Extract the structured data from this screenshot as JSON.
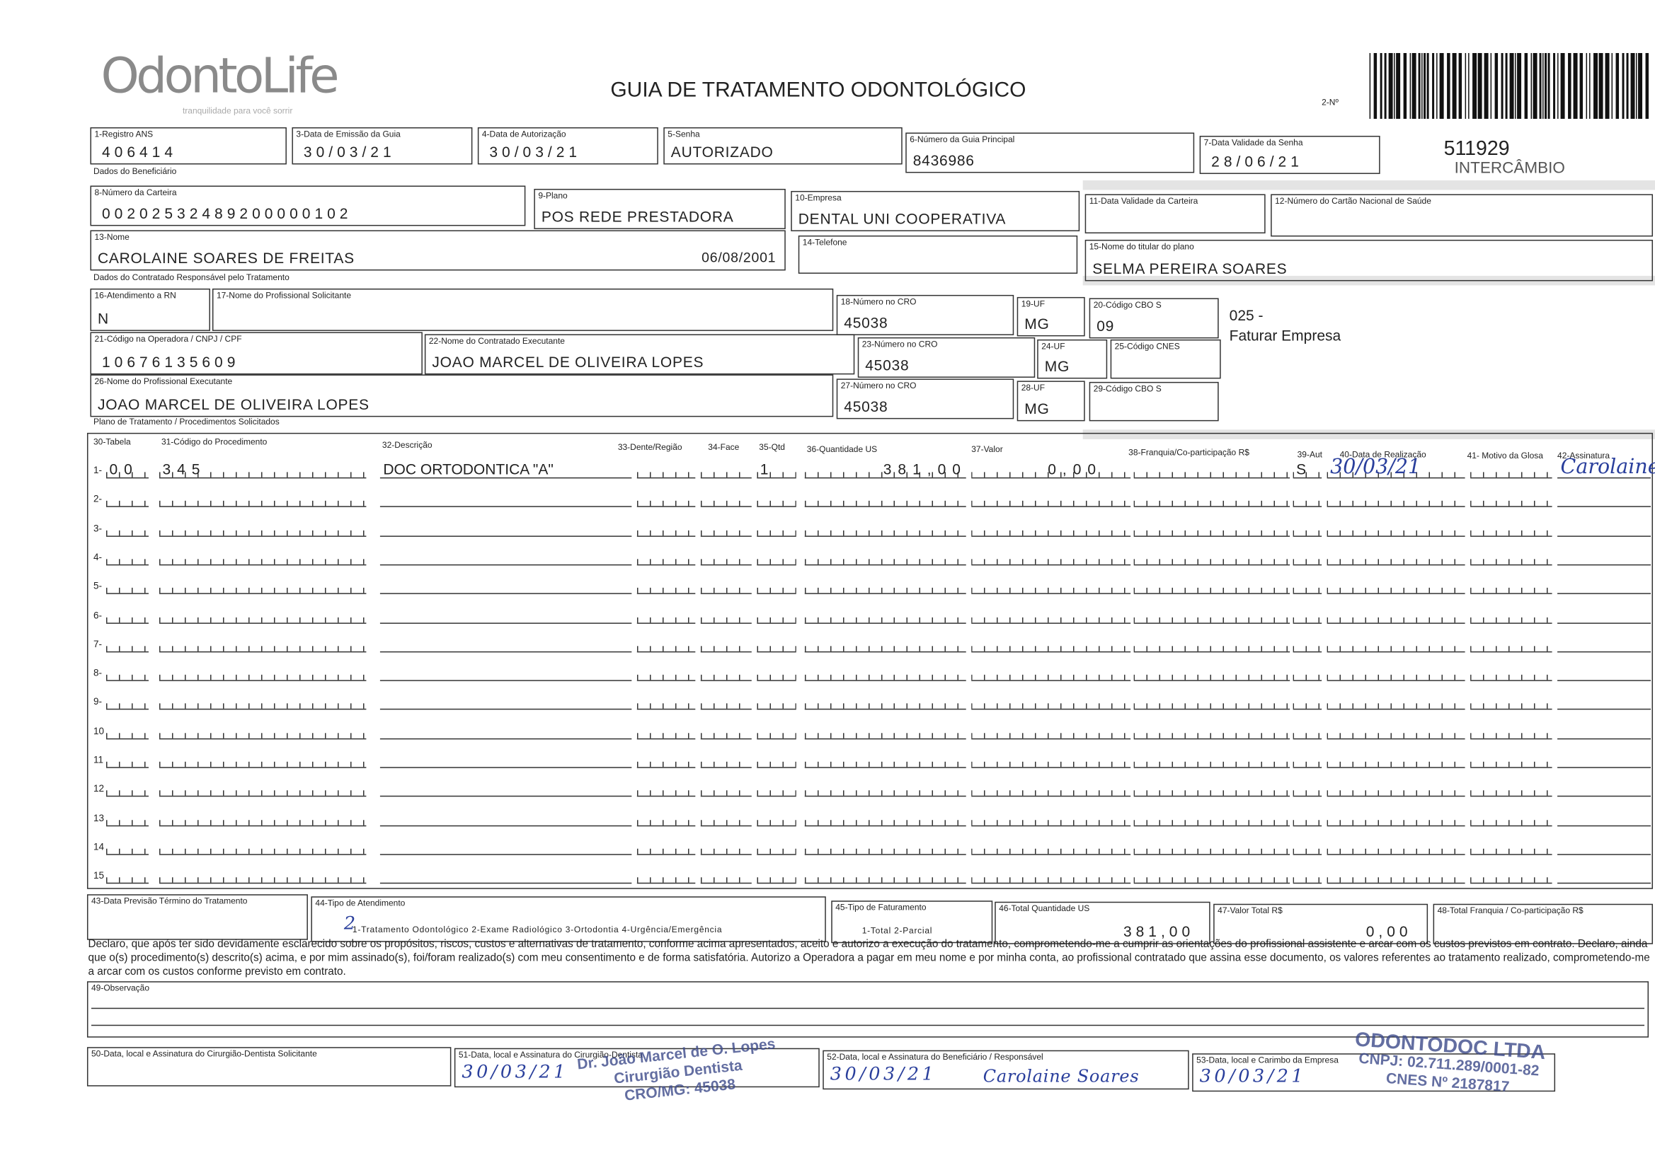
{
  "header": {
    "logo": "OdontoLife",
    "tagline": "tranquilidade para você sorrir",
    "title": "GUIA DE TRATAMENTO ODONTOLÓGICO",
    "guide_number_label": "2-Nº",
    "guide_number": "511929",
    "guide_type": "INTERCÂMBIO"
  },
  "sections": [
    "Dados do Beneficiário",
    "Dados do Contratado Responsável pelo Tratamento",
    "Plano de Tratamento / Procedimentos Solicitados"
  ],
  "fields": [
    {
      "label": "1-Registro ANS",
      "value": "406414"
    },
    {
      "label": "3-Data de Emissão da Guia",
      "value": "30/03/21"
    },
    {
      "label": "4-Data de Autorização",
      "value": "30/03/21"
    },
    {
      "label": "5-Senha",
      "value": "AUTORIZADO"
    },
    {
      "label": "6-Número da Guia Principal",
      "value": "8436986"
    },
    {
      "label": "7-Data Validade da Senha",
      "value": "28/06/21"
    },
    {
      "label": "8-Número da Carteira",
      "value": "00202532489200000102"
    },
    {
      "label": "9-Plano",
      "value": "POS REDE PRESTADORA"
    },
    {
      "label": "10-Empresa",
      "value": "DENTAL UNI  COOPERATIVA"
    },
    {
      "label": "11-Data Validade da Carteira"
    },
    {
      "label": "12-Número do Cartão Nacional de Saúde"
    },
    {
      "label": "13-Nome",
      "value": "CAROLAINE SOARES DE FREITAS",
      "extra": "06/08/2001"
    },
    {
      "label": "14-Telefone"
    },
    {
      "label": "15-Nome do titular do plano",
      "value": "SELMA PEREIRA SOARES"
    },
    {
      "label": "16-Atendimento a RN",
      "value": "N"
    },
    {
      "label": "17-Nome do Profissional Solicitante"
    },
    {
      "label": "18-Número no CRO",
      "value": "45038"
    },
    {
      "label": "19-UF",
      "value": "MG"
    },
    {
      "label": "20-Código CBO S",
      "value": "09"
    },
    {
      "label": "21-Código na Operadora / CNPJ / CPF",
      "value": "10676135609"
    },
    {
      "label": "22-Nome do Contratado Executante",
      "value": "JOAO MARCEL DE OLIVEIRA LOPES"
    },
    {
      "label": "23-Número no CRO",
      "value": "45038"
    },
    {
      "label": "24-UF",
      "value": "MG"
    },
    {
      "label": "25-Código CNES"
    },
    {
      "label": "26-Nome do Profissional Executante",
      "value": "JOAO MARCEL DE OLIVEIRA LOPES"
    },
    {
      "label": "27-Número no CRO",
      "value": "45038"
    },
    {
      "label": "28-UF",
      "value": "MG"
    },
    {
      "label": "29-Código CBO S"
    },
    {
      "label": "43-Data Previsão Término do Tratamento"
    },
    {
      "label": "44-Tipo de Atendimento",
      "value": "2",
      "extra": "1-Tratamento Odontológico  2-Exame Radiológico  3-Ortodontia  4-Urgência/Emergência"
    },
    {
      "label": "45-Tipo de Faturamento",
      "extra": "1-Total  2-Parcial"
    },
    {
      "label": "46-Total Quantidade US",
      "value": "381,00"
    },
    {
      "label": "47-Valor Total R$",
      "value": "0,00"
    },
    {
      "label": "48-Total Franquia / Co-participação R$"
    },
    {
      "label": "49-Observação"
    },
    {
      "label": "50-Data, local e Assinatura do Cirurgião-Dentista Solicitante"
    },
    {
      "label": "51-Data, local e Assinatura do Cirurgião-Dentista",
      "value": "30/03/21"
    },
    {
      "label": "52-Data, local e Assinatura do Beneficiário / Responsável",
      "value": "30/03/21",
      "extra": "Carolaine Soares"
    },
    {
      "label": "53-Data, local e Carimbo da Empresa",
      "value": "30/03/21"
    }
  ],
  "cbo_note": [
    "025 -",
    "Faturar Empresa"
  ],
  "table": {
    "headers": [
      "30-Tabela",
      "31-Código do Procedimento",
      "32-Descrição",
      "33-Dente/Região",
      "34-Face",
      "35-Qtd",
      "36-Quantidade US",
      "37-Valor",
      "38-Franquia/Co-participação R$",
      "39-Aut",
      "40-Data de Realização",
      "41- Motivo da Glosa",
      "42-Assinatura"
    ],
    "rows": [
      {
        "number": "1-",
        "tabela": "00",
        "codigo": "345",
        "descricao": "DOC ORTODONTICA \"A\"",
        "qtd": "1",
        "quantidade_us": "381,00",
        "valor": "0,00",
        "aut": "S",
        "data": "30/03/21",
        "assinatura": "Carolaine"
      },
      {
        "number": "2-"
      },
      {
        "number": "3-"
      },
      {
        "number": "4-"
      },
      {
        "number": "5-"
      },
      {
        "number": "6-"
      },
      {
        "number": "7-"
      },
      {
        "number": "8-"
      },
      {
        "number": "9-"
      },
      {
        "number": "10"
      },
      {
        "number": "11"
      },
      {
        "number": "12"
      },
      {
        "number": "13"
      },
      {
        "number": "14"
      },
      {
        "number": "15"
      }
    ]
  },
  "declaration": "Declaro, que após ter sido devidamente esclarecido sobre os propósitos, riscos, custos e alternativas de tratamento, conforme acima apresentados, aceito e autorizo a execução do tratamento, comprometendo-me a cumprir as orientações do profissional assistente e arcar com os custos previstos em contrato. Declaro, ainda que o(s) procedimento(s) descrito(s) acima, e por mim assinado(s), foi/foram realizado(s) com meu consentimento e de forma satisfatória. Autorizo a Operadora a pagar em meu nome e por minha conta, ao profissional contratado que assina esse documento, os valores referentes ao tratamento realizado, comprometendo-me a arcar com os custos conforme previsto em contrato.",
  "stamps": [
    [
      "Dr. João Marcel de O. Lopes",
      "Cirurgião Dentista",
      "CRO/MG: 45038"
    ],
    [
      "ODONTODOC LTDA",
      "CNPJ: 02.711.289/0001-82",
      "CNES Nº 2187817"
    ]
  ]
}
